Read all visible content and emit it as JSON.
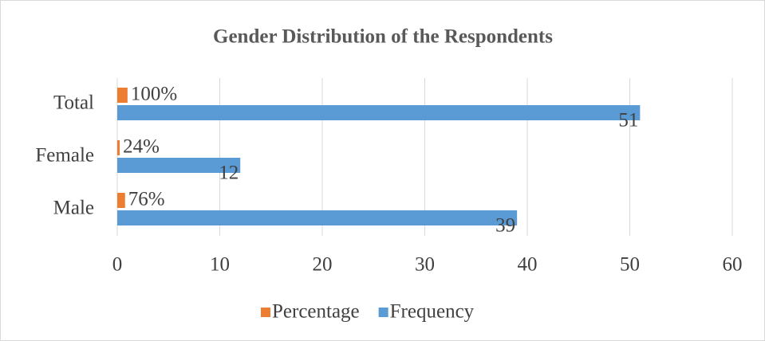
{
  "chart_data": {
    "type": "bar",
    "orientation": "horizontal",
    "title": "Gender Distribution of the Respondents",
    "categories": [
      "Male",
      "Female",
      "Total"
    ],
    "series": [
      {
        "name": "Percentage",
        "color": "#ed7d31",
        "values": [
          0.76,
          0.24,
          1
        ],
        "value_labels": [
          "76%",
          "24%",
          "100%"
        ]
      },
      {
        "name": "Frequency",
        "color": "#5b9bd5",
        "values": [
          39,
          12,
          51
        ]
      }
    ],
    "xlim": [
      0,
      60
    ],
    "xticks": [
      0,
      10,
      20,
      30,
      40,
      50,
      60
    ],
    "grid": true,
    "legend": "bottom"
  }
}
